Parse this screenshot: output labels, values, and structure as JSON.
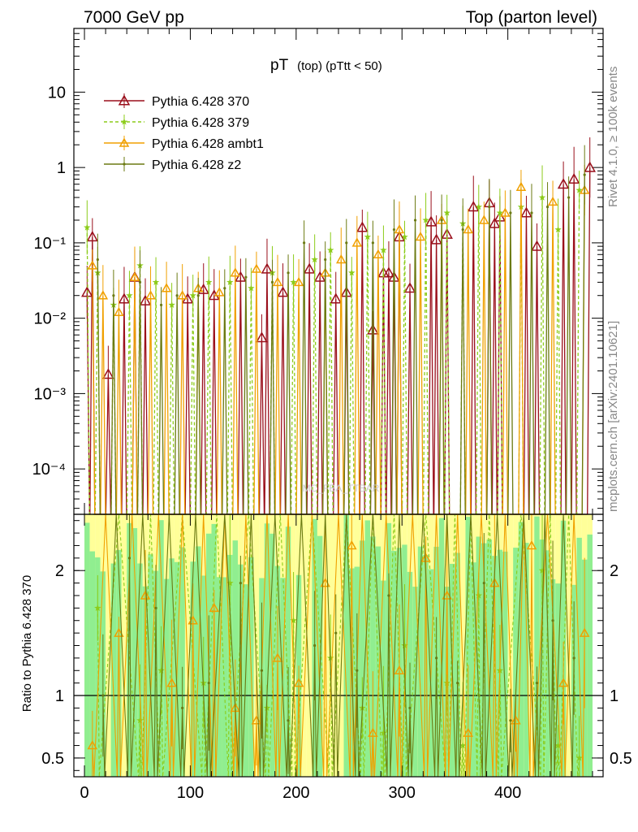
{
  "header": {
    "left": "7000 GeV pp",
    "right": "Top (parton level)"
  },
  "side_text": {
    "rivet": "Rivet 4.1.0, ≥ 100k events",
    "mcplots": "mcplots.cern.ch [arXiv:2401.10621]"
  },
  "watermark": "MC_FBA_TTBAR",
  "colors": {
    "pythia_370": "#9a0f1b",
    "pythia_379": "#8ccc1a",
    "pythia_ambt1": "#f0a000",
    "pythia_z2": "#6b7a12",
    "band_green": "#90ee90",
    "band_yellow": "#ffff99"
  },
  "chart_data": [
    {
      "type": "line",
      "panel": "main",
      "title": "pT",
      "title_sub": "(top) (pTtt < 50)",
      "xlabel": "",
      "ylabel": "",
      "yscale": "log",
      "xlim": [
        -10,
        490
      ],
      "ylim": [
        2.5e-05,
        70
      ],
      "y_ticks": [
        {
          "value": 10,
          "label": "10"
        },
        {
          "value": 1,
          "label": "1"
        },
        {
          "value": 0.1,
          "label": "10⁻¹"
        },
        {
          "value": 0.01,
          "label": "10⁻²"
        },
        {
          "value": 0.001,
          "label": "10⁻³"
        },
        {
          "value": 0.0001,
          "label": "10⁻⁴"
        }
      ],
      "legend_position": "top-left",
      "series": [
        {
          "name": "Pythia 6.428 370",
          "color_key": "pythia_370",
          "marker": "triangle-open",
          "dash": "solid",
          "x": [
            2.5,
            7.5,
            22.5,
            37.5,
            47.5,
            57.5,
            97.5,
            112.5,
            122.5,
            147.5,
            167.5,
            172.5,
            187.5,
            212.5,
            222.5,
            237.5,
            247.5,
            262.5,
            272.5,
            282.5,
            287.5,
            292.5,
            297.5,
            307.5,
            327.5,
            332.5,
            342.5,
            367.5,
            382.5,
            387.5,
            392.5,
            417.5,
            427.5,
            452.5,
            462.5,
            477.5
          ],
          "y": [
            0.022,
            0.12,
            0.0018,
            0.018,
            0.035,
            0.017,
            0.018,
            0.024,
            0.02,
            0.035,
            0.0055,
            0.045,
            0.022,
            0.045,
            0.035,
            0.018,
            0.022,
            0.16,
            0.007,
            0.04,
            0.04,
            0.035,
            0.12,
            0.025,
            0.19,
            0.11,
            0.13,
            0.3,
            0.34,
            0.18,
            0.22,
            0.25,
            0.09,
            0.6,
            0.7,
            1.0
          ]
        },
        {
          "name": "Pythia 6.428 379",
          "color_key": "pythia_379",
          "marker": "star",
          "dash": "dashed",
          "x": [
            2.5,
            12.5,
            27.5,
            42.5,
            52.5,
            67.5,
            82.5,
            102.5,
            117.5,
            137.5,
            157.5,
            177.5,
            197.5,
            217.5,
            232.5,
            252.5,
            267.5,
            282.5,
            302.5,
            322.5,
            342.5,
            357.5,
            372.5,
            392.5,
            412.5,
            432.5,
            447.5,
            467.5
          ],
          "y": [
            0.16,
            0.04,
            0.015,
            0.02,
            0.05,
            0.03,
            0.015,
            0.02,
            0.03,
            0.03,
            0.025,
            0.04,
            0.03,
            0.06,
            0.08,
            0.04,
            0.12,
            0.08,
            0.12,
            0.2,
            0.25,
            0.18,
            0.3,
            0.25,
            0.3,
            0.4,
            0.15,
            0.5
          ]
        },
        {
          "name": "Pythia 6.428 ambt1",
          "color_key": "pythia_ambt1",
          "marker": "triangle",
          "dash": "solid",
          "x": [
            7.5,
            17.5,
            32.5,
            47.5,
            62.5,
            77.5,
            92.5,
            107.5,
            127.5,
            142.5,
            162.5,
            182.5,
            202.5,
            227.5,
            242.5,
            257.5,
            277.5,
            297.5,
            317.5,
            337.5,
            362.5,
            377.5,
            397.5,
            412.5,
            442.5,
            472.5
          ],
          "y": [
            0.05,
            0.02,
            0.012,
            0.035,
            0.02,
            0.025,
            0.02,
            0.025,
            0.022,
            0.04,
            0.045,
            0.03,
            0.03,
            0.04,
            0.06,
            0.1,
            0.07,
            0.15,
            0.12,
            0.2,
            0.15,
            0.2,
            0.25,
            0.55,
            0.35,
            0.5
          ]
        },
        {
          "name": "Pythia 6.428 z2",
          "color_key": "pythia_z2",
          "marker": "dot",
          "dash": "solid",
          "x": [
            12.5,
            27.5,
            52.5,
            72.5,
            87.5,
            107.5,
            132.5,
            152.5,
            177.5,
            192.5,
            207.5,
            227.5,
            247.5,
            272.5,
            292.5,
            312.5,
            337.5,
            357.5,
            382.5,
            402.5,
            422.5,
            437.5,
            457.5,
            472.5
          ],
          "y": [
            0.06,
            0.02,
            0.03,
            0.015,
            0.02,
            0.02,
            0.025,
            0.035,
            0.03,
            0.04,
            0.1,
            0.06,
            0.1,
            0.1,
            0.15,
            0.2,
            0.2,
            0.15,
            0.3,
            0.25,
            0.25,
            0.3,
            0.4,
            0.8
          ]
        }
      ]
    },
    {
      "type": "line",
      "panel": "ratio",
      "title": "",
      "xlabel": "",
      "ylabel": "Ratio to Pythia 6.428 370",
      "xlim": [
        -10,
        490
      ],
      "ylim": [
        0.35,
        2.45
      ],
      "x_ticks": [
        0,
        100,
        200,
        300,
        400
      ],
      "y_ticks": [
        {
          "value": 0.5,
          "label": "0.5"
        },
        {
          "value": 1,
          "label": "1"
        },
        {
          "value": 2,
          "label": "2"
        }
      ],
      "reference_line": 1,
      "series": [
        {
          "name": "Pythia 6.428 379",
          "color_key": "pythia_379",
          "marker": "star",
          "dash": "dashed",
          "x": [
            12.5,
            52.5,
            72.5,
            112.5,
            137.5,
            172.5,
            197.5,
            232.5,
            262.5,
            282.5,
            302.5,
            342.5,
            357.5,
            372.5,
            392.5,
            432.5,
            447.5,
            467.5
          ],
          "y": [
            1.7,
            0.8,
            1.2,
            1.1,
            1.9,
            0.9,
            1.6,
            1.3,
            0.9,
            0.7,
            1.4,
            1.1,
            0.6,
            1.8,
            1.2,
            2.0,
            0.6,
            0.5
          ]
        },
        {
          "name": "Pythia 6.428 ambt1",
          "color_key": "pythia_ambt1",
          "marker": "triangle",
          "dash": "solid",
          "x": [
            7.5,
            32.5,
            57.5,
            82.5,
            102.5,
            122.5,
            142.5,
            162.5,
            182.5,
            202.5,
            227.5,
            252.5,
            272.5,
            297.5,
            322.5,
            342.5,
            362.5,
            387.5,
            407.5,
            422.5,
            452.5,
            472.5
          ],
          "y": [
            0.6,
            1.5,
            1.8,
            1.1,
            1.6,
            1.7,
            0.9,
            0.8,
            1.3,
            1.1,
            1.9,
            2.2,
            0.7,
            1.2,
            2.1,
            1.8,
            0.7,
            1.9,
            0.8,
            2.2,
            1.1,
            1.5
          ]
        },
        {
          "name": "Pythia 6.428 z2",
          "color_key": "pythia_z2",
          "marker": "dot",
          "dash": "solid",
          "x": [
            17.5,
            42.5,
            67.5,
            92.5,
            117.5,
            147.5,
            167.5,
            192.5,
            217.5,
            237.5,
            257.5,
            287.5,
            307.5,
            332.5,
            352.5,
            377.5,
            402.5,
            427.5,
            442.5,
            462.5
          ],
          "y": [
            1.0,
            2.1,
            1.7,
            0.9,
            1.1,
            1.9,
            1.2,
            0.8,
            1.4,
            1.5,
            1.2,
            1.8,
            0.9,
            1.3,
            1.1,
            1.9,
            0.8,
            1.1,
            1.6,
            1.3
          ]
        }
      ]
    }
  ]
}
